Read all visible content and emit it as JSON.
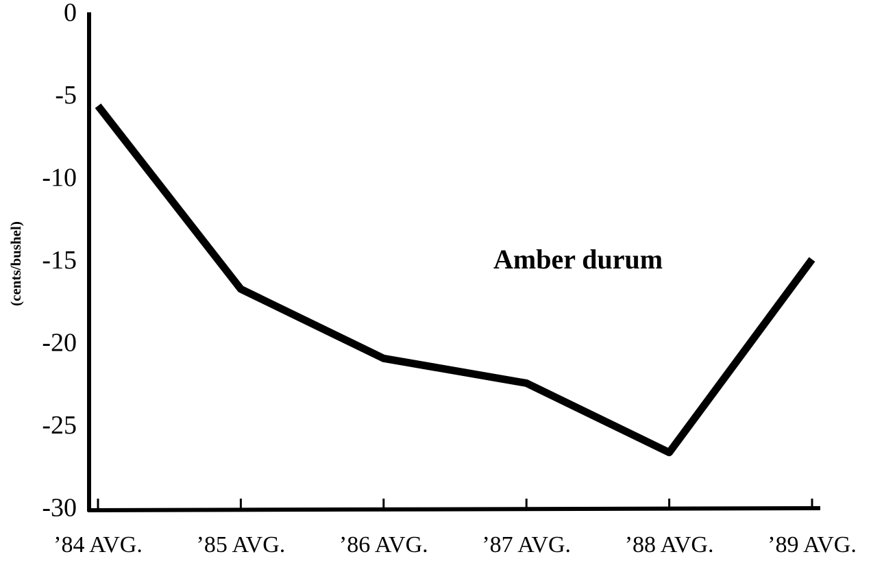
{
  "chart_data": {
    "type": "line",
    "ylabel": "(cents/bushel)",
    "annotation": "Amber durum",
    "categories": [
      "’84 AVG.",
      "’85 AVG.",
      "’86 AVG.",
      "’87 AVG.",
      "’88 AVG.",
      "’89 AVG."
    ],
    "series": [
      {
        "name": "Amber durum",
        "color": "#000000",
        "values": [
          -5.5,
          -16.6,
          -20.8,
          -22.3,
          -26.5,
          -14.8
        ]
      }
    ],
    "ylim": [
      -30,
      0
    ],
    "yticks": [
      0,
      -5,
      -10,
      -15,
      -20,
      -25,
      -30
    ],
    "grid": false
  }
}
